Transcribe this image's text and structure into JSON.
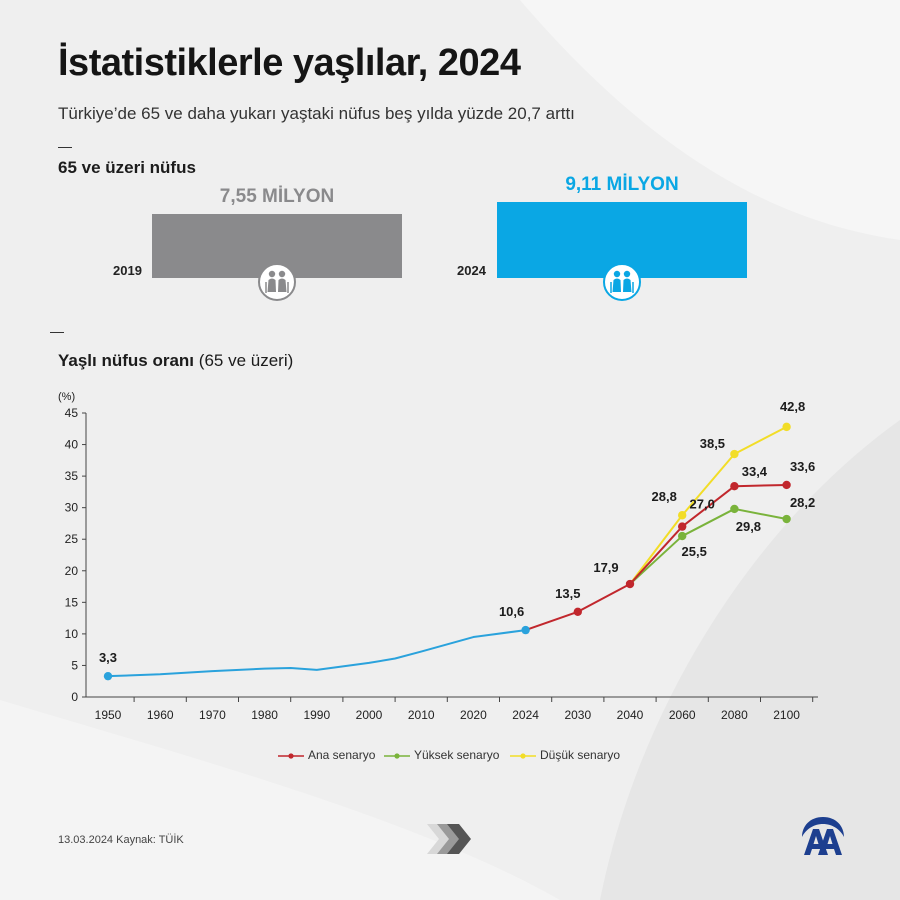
{
  "header": {
    "title": "İstatistiklerle yaşlılar, 2024",
    "subtitle": "Türkiye’de 65 ve daha yukarı yaştaki nüfus beş yılda yüzde 20,7 arttı"
  },
  "population_section": {
    "title": "65 ve üzeri nüfus",
    "bars": [
      {
        "year": "2019",
        "label": "7,55 MİLYON",
        "value": 7.55,
        "color": "#8a8a8c"
      },
      {
        "year": "2024",
        "label": "9,11 MİLYON",
        "value": 9.11,
        "color": "#0aa7e4"
      }
    ]
  },
  "ratio_section": {
    "title_bold": "Yaşlı nüfus oranı",
    "title_light": "(65 ve üzeri)"
  },
  "chart_data": {
    "type": "line",
    "ylabel": "(%)",
    "ylim": [
      0,
      45
    ],
    "yticks": [
      0,
      5,
      10,
      15,
      20,
      25,
      30,
      35,
      40,
      45
    ],
    "xticks": [
      "1950",
      "1960",
      "1970",
      "1980",
      "1990",
      "2000",
      "2010",
      "2020",
      "2024",
      "2030",
      "2040",
      "2060",
      "2080",
      "2100"
    ],
    "grid": false,
    "legend_position": "bottom",
    "series": [
      {
        "name": "",
        "color": "#2aa2dc",
        "points": [
          [
            "1950",
            3.3
          ],
          [
            "1960",
            3.6
          ],
          [
            "1970",
            4.1
          ],
          [
            "1980",
            4.5
          ],
          [
            "1985",
            4.6
          ],
          [
            "1990",
            4.3
          ],
          [
            "2000",
            5.4
          ],
          [
            "2005",
            6.1
          ],
          [
            "2010",
            7.2
          ],
          [
            "2020",
            9.5
          ],
          [
            "2024",
            10.6
          ]
        ],
        "labels": [
          {
            "x": "1950",
            "y": 3.3,
            "text": "3,3"
          },
          {
            "x": "2024",
            "y": 10.6,
            "text": "10,6"
          }
        ]
      },
      {
        "name": "Ana senaryo",
        "color": "#c1272d",
        "points": [
          [
            "2024",
            10.6
          ],
          [
            "2030",
            13.5
          ],
          [
            "2040",
            17.9
          ],
          [
            "2060",
            27.0
          ],
          [
            "2080",
            33.4
          ],
          [
            "2100",
            33.6
          ]
        ],
        "labels": [
          {
            "x": "2030",
            "y": 13.5,
            "text": "13,5"
          },
          {
            "x": "2040",
            "y": 17.9,
            "text": "17,9"
          },
          {
            "x": "2060",
            "y": 27.0,
            "text": "27,0"
          },
          {
            "x": "2080",
            "y": 33.4,
            "text": "33,4"
          },
          {
            "x": "2100",
            "y": 33.6,
            "text": "33,6"
          }
        ]
      },
      {
        "name": "Yüksek senaryo",
        "color": "#7ab33b",
        "points": [
          [
            "2040",
            17.9
          ],
          [
            "2060",
            25.5
          ],
          [
            "2080",
            29.8
          ],
          [
            "2100",
            28.2
          ]
        ],
        "labels": [
          {
            "x": "2060",
            "y": 25.5,
            "text": "25,5"
          },
          {
            "x": "2080",
            "y": 29.8,
            "text": "29,8"
          },
          {
            "x": "2100",
            "y": 28.2,
            "text": "28,2"
          }
        ]
      },
      {
        "name": "Düşük senaryo",
        "color": "#f2dd27",
        "points": [
          [
            "2040",
            17.9
          ],
          [
            "2060",
            28.8
          ],
          [
            "2080",
            38.5
          ],
          [
            "2100",
            42.8
          ]
        ],
        "labels": [
          {
            "x": "2060",
            "y": 28.8,
            "text": "28,8"
          },
          {
            "x": "2080",
            "y": 38.5,
            "text": "38,5"
          },
          {
            "x": "2100",
            "y": 42.8,
            "text": "42,8"
          }
        ]
      }
    ]
  },
  "legend": [
    {
      "name": "Ana senaryo",
      "color": "#c1272d"
    },
    {
      "name": "Yüksek senaryo",
      "color": "#7ab33b"
    },
    {
      "name": "Düşük senaryo",
      "color": "#f2dd27"
    }
  ],
  "footer": {
    "text": "13.03.2024  Kaynak: TÜİK"
  },
  "icons": {
    "person": "elderly-couple-icon",
    "arrows": "chevron-arrows-icon",
    "logo": "aa-logo-icon"
  }
}
